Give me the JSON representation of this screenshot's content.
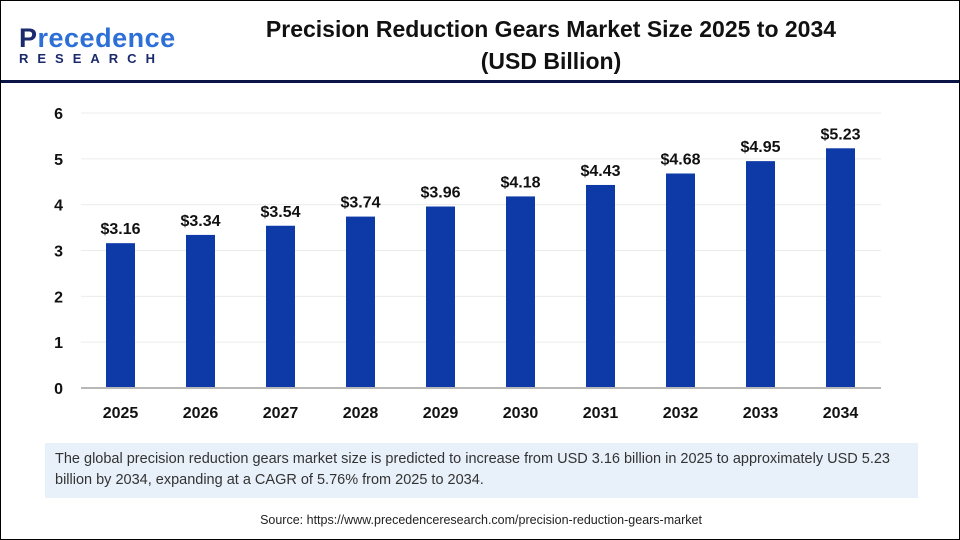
{
  "logo": {
    "line1": "Precedence",
    "line2": "RESEARCH"
  },
  "title_line1": "Precision Reduction Gears Market Size 2025 to 2034",
  "title_line2": "(USD Billion)",
  "chart_data": {
    "type": "bar",
    "title": "Precision Reduction Gears Market Size 2025 to 2034 (USD Billion)",
    "categories": [
      "2025",
      "2026",
      "2027",
      "2028",
      "2029",
      "2030",
      "2031",
      "2032",
      "2033",
      "2034"
    ],
    "values": [
      3.16,
      3.34,
      3.54,
      3.74,
      3.96,
      4.18,
      4.43,
      4.68,
      4.95,
      5.23
    ],
    "labels": [
      "$3.16",
      "$3.34",
      "$3.54",
      "$3.74",
      "$3.96",
      "$4.18",
      "$4.43",
      "$4.68",
      "$4.95",
      "$5.23"
    ],
    "yticks": [
      "0",
      "1",
      "2",
      "3",
      "4",
      "5",
      "6"
    ],
    "ylim": [
      0,
      6
    ],
    "grid": true,
    "bar_color": "#0e3aa8"
  },
  "caption": "The global precision reduction gears market size is predicted to increase from USD 3.16 billion in 2025 to approximately USD 5.23 billion by 2034, expanding at a CAGR of 5.76% from 2025 to 2034.",
  "source": "Source: https://www.precedenceresearch.com/precision-reduction-gears-market"
}
